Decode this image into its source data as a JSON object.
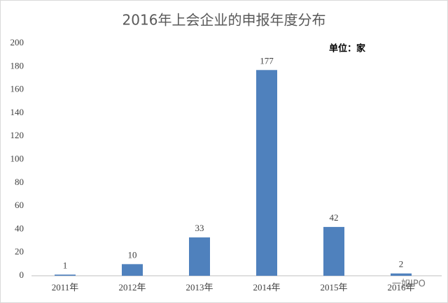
{
  "chart_data": {
    "type": "bar",
    "title": "2016年上会企业的申报年度分布",
    "annotation": "单位：家",
    "watermark": "一如IPO",
    "categories": [
      "2011年",
      "2012年",
      "2013年",
      "2014年",
      "2015年",
      "2016年"
    ],
    "values": [
      1,
      10,
      33,
      177,
      42,
      2
    ],
    "color": "#4f81bd",
    "ylim": [
      0,
      200
    ],
    "yticks": [
      0,
      20,
      40,
      60,
      80,
      100,
      120,
      140,
      160,
      180,
      200
    ],
    "grid": false
  }
}
